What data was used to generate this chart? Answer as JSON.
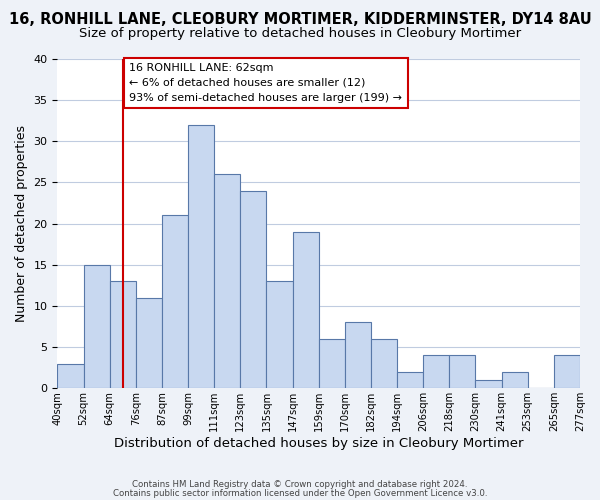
{
  "title1": "16, RONHILL LANE, CLEOBURY MORTIMER, KIDDERMINSTER, DY14 8AU",
  "title2": "Size of property relative to detached houses in Cleobury Mortimer",
  "xlabel": "Distribution of detached houses by size in Cleobury Mortimer",
  "ylabel": "Number of detached properties",
  "bin_labels": [
    "40sqm",
    "52sqm",
    "64sqm",
    "76sqm",
    "87sqm",
    "99sqm",
    "111sqm",
    "123sqm",
    "135sqm",
    "147sqm",
    "159sqm",
    "170sqm",
    "182sqm",
    "194sqm",
    "206sqm",
    "218sqm",
    "230sqm",
    "241sqm",
    "253sqm",
    "265sqm",
    "277sqm"
  ],
  "bar_heights": [
    3,
    15,
    13,
    11,
    21,
    32,
    26,
    24,
    13,
    19,
    6,
    8,
    6,
    2,
    4,
    4,
    1,
    2,
    0,
    4
  ],
  "bar_color": "#c8d8f0",
  "bar_edge_color": "#5878a8",
  "vline_x": 2.0,
  "vline_color": "#cc0000",
  "ylim": [
    0,
    40
  ],
  "yticks": [
    0,
    5,
    10,
    15,
    20,
    25,
    30,
    35,
    40
  ],
  "annotation_title": "16 RONHILL LANE: 62sqm",
  "annotation_line1": "← 6% of detached houses are smaller (12)",
  "annotation_line2": "93% of semi-detached houses are larger (199) →",
  "footer1": "Contains HM Land Registry data © Crown copyright and database right 2024.",
  "footer2": "Contains public sector information licensed under the Open Government Licence v3.0.",
  "background_color": "#eef2f8",
  "plot_bg_color": "#ffffff",
  "grid_color": "#c0cce0",
  "title1_fontsize": 10.5,
  "title2_fontsize": 9.5,
  "xlabel_fontsize": 9.5,
  "ylabel_fontsize": 9
}
